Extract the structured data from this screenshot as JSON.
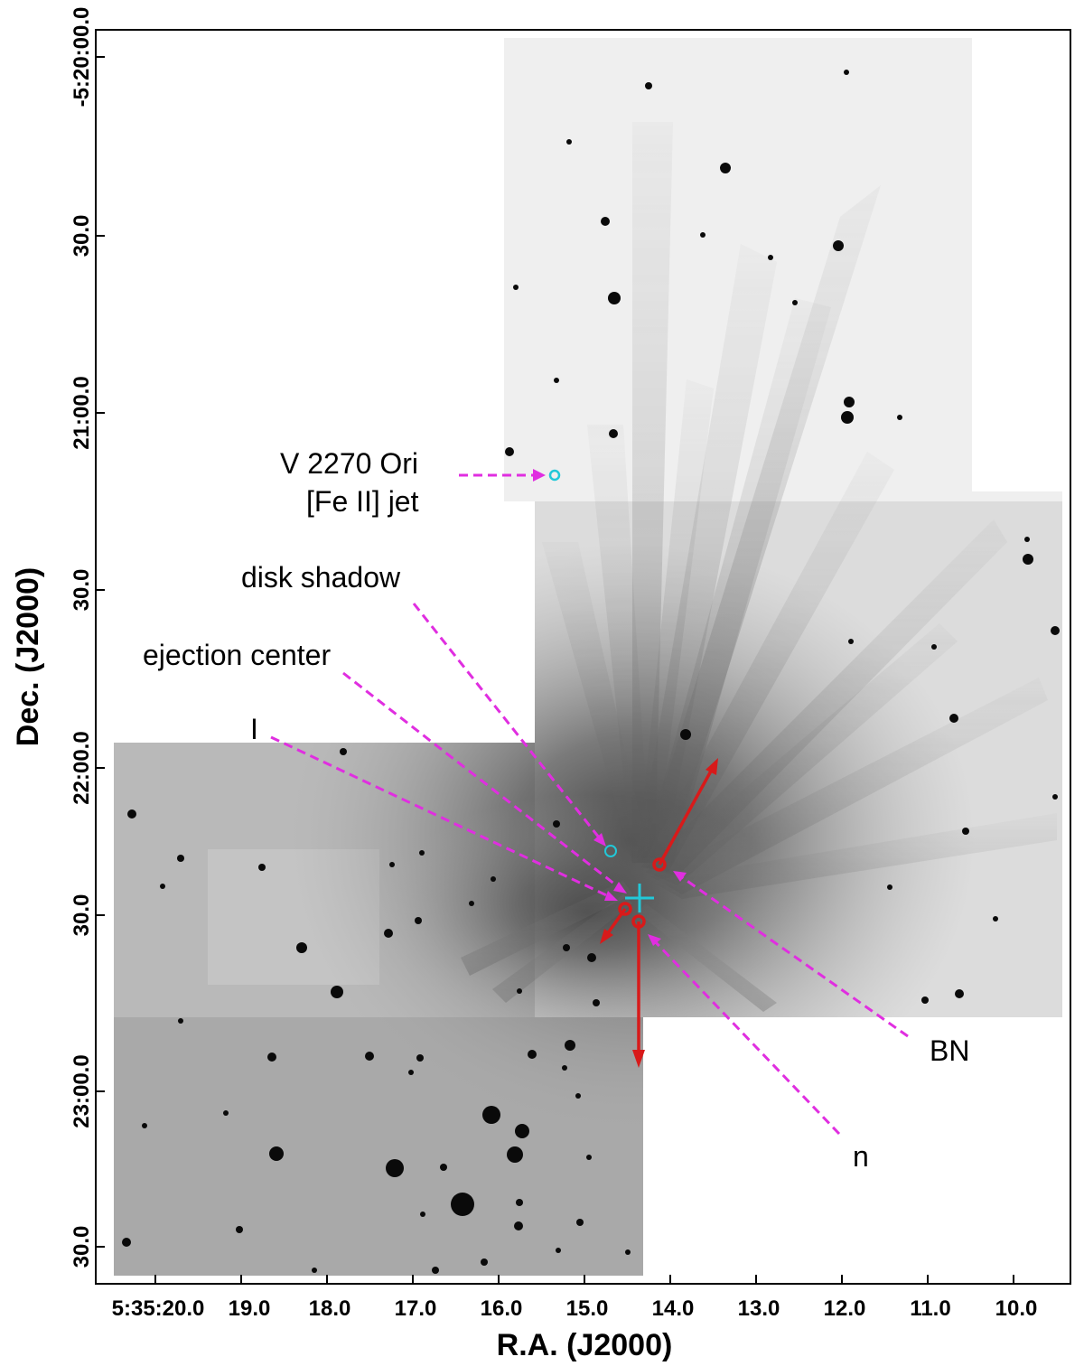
{
  "axes": {
    "xlabel": "R.A. (J2000)",
    "ylabel": "Dec. (J2000)",
    "x_ticks": [
      "5:35:20.0",
      "19.0",
      "18.0",
      "17.0",
      "16.0",
      "15.0",
      "14.0",
      "13.0",
      "12.0",
      "11.0",
      "10.0"
    ],
    "y_ticks": [
      "-5:20:00.0",
      "30.0",
      "21:00.0",
      "30.0",
      "22:00.0",
      "30.0",
      "23:00.0",
      "30.0"
    ]
  },
  "annotations": {
    "v2270": "V 2270 Ori",
    "feii_jet": "[Fe II] jet",
    "disk_shadow": "disk shadow",
    "ejection_center": "ejection center",
    "source_i": "I",
    "source_bn": "BN",
    "source_n": "n"
  },
  "colors": {
    "annotation_arrow": "#e02ee0",
    "proper_motion": "#d81a1a",
    "marker": "#22c8d8",
    "image_background": "#ededed",
    "image_dark": "#6b6b6b"
  }
}
